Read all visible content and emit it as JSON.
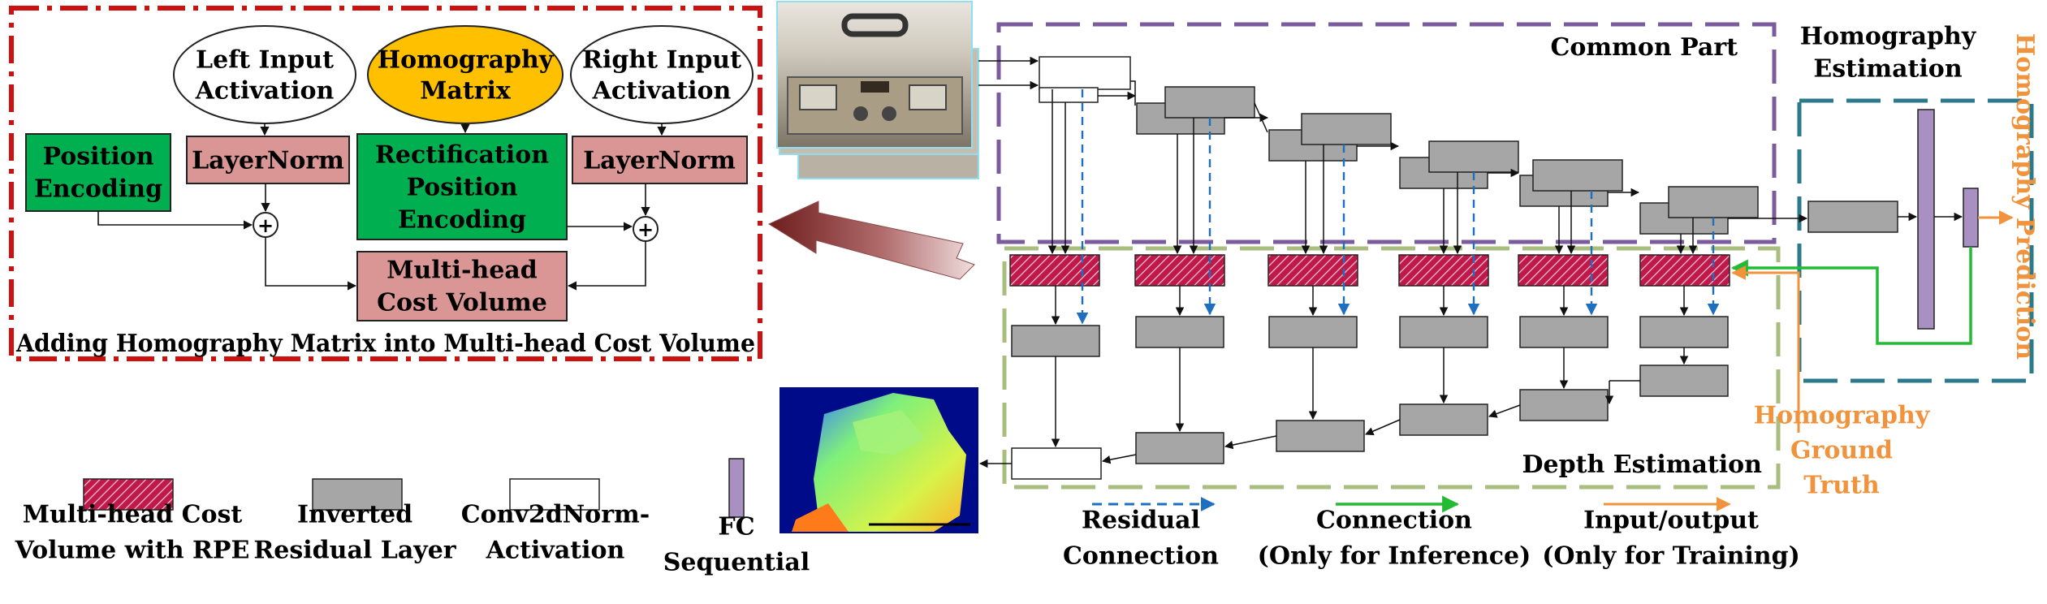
{
  "inset": {
    "caption": "Adding Homography Matrix into  Multi-head Cost Volume",
    "nodes": {
      "left_input": [
        "Left Input",
        "Activation"
      ],
      "homography_matrix": [
        "Homography",
        "Matrix"
      ],
      "right_input": [
        "Right Input",
        "Activation"
      ],
      "position_encoding": [
        "Position",
        "Encoding"
      ],
      "layernorm_left": [
        "LayerNorm"
      ],
      "rectification_pe": [
        "Rectification",
        "Position",
        "Encoding"
      ],
      "layernorm_right": [
        "LayerNorm"
      ],
      "cost_volume": [
        "Multi-head",
        "Cost Volume"
      ]
    },
    "add_symbol": "+"
  },
  "sections": {
    "common_part": "Common Part",
    "homography_estimation": [
      "Homography",
      "Estimation"
    ],
    "depth_estimation": "Depth Estimation",
    "homography_prediction": "Homography Prediction",
    "homography_ground_truth": [
      "Homography",
      "Ground",
      "Truth"
    ]
  },
  "legend": {
    "cost_volume": [
      "Multi-head Cost",
      "Volume with RPE"
    ],
    "inverted_residual": [
      "Inverted",
      "Residual Layer"
    ],
    "conv2d": [
      "Conv2dNorm-",
      "Activation"
    ],
    "fc": [
      "FC",
      "Sequential"
    ],
    "residual_connection": [
      "Residual",
      "Connection"
    ],
    "connection_inference": [
      "Connection",
      "(Only for Inference)"
    ],
    "io_training": [
      "Input/output",
      "(Only for Training)"
    ]
  },
  "colors": {
    "red_dashdot": "#cc1111",
    "purple_dash": "#7b5a9e",
    "teal_dash": "#2a7a8c",
    "green_dash": "#a8bd7e",
    "orange": "#f0933c",
    "blue": "#1f6fc0",
    "green_line": "#22bb33",
    "green_box": "#00b050",
    "pink_box": "#d99694",
    "yellow": "#ffc000",
    "gray_box": "#a6a6a6",
    "crimson": "#c0184a",
    "fc_purple": "#a990c2"
  }
}
